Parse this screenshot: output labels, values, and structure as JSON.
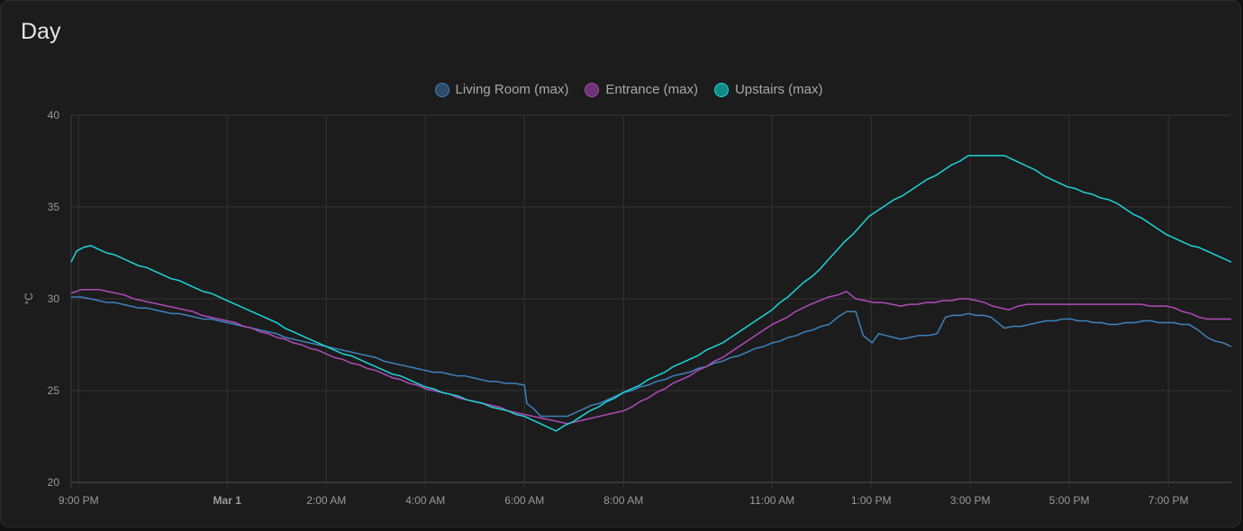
{
  "card": {
    "title": "Day"
  },
  "chart_data": {
    "type": "line",
    "title": "Day",
    "xlabel": "",
    "ylabel": "°C",
    "ylim": [
      20,
      40
    ],
    "xlim": [
      -3.15,
      20.27
    ],
    "x_unit": "hours since midnight Mar 1",
    "yticks": [
      20,
      25,
      30,
      35,
      40
    ],
    "xticks": [
      {
        "value": -3,
        "label": "9:00 PM",
        "bold": false
      },
      {
        "value": 0,
        "label": "Mar 1",
        "bold": true
      },
      {
        "value": 2,
        "label": "2:00 AM",
        "bold": false
      },
      {
        "value": 4,
        "label": "4:00 AM",
        "bold": false
      },
      {
        "value": 6,
        "label": "6:00 AM",
        "bold": false
      },
      {
        "value": 8,
        "label": "8:00 AM",
        "bold": false
      },
      {
        "value": 11,
        "label": "11:00 AM",
        "bold": false
      },
      {
        "value": 13,
        "label": "1:00 PM",
        "bold": false
      },
      {
        "value": 15,
        "label": "3:00 PM",
        "bold": false
      },
      {
        "value": 17,
        "label": "5:00 PM",
        "bold": false
      },
      {
        "value": 19,
        "label": "7:00 PM",
        "bold": false
      }
    ],
    "grid": true,
    "legend_position": "top-center",
    "series": [
      {
        "name": "Living Room (max)",
        "color": "#3f82bd",
        "fill": "#2f4a66",
        "x": [
          -3.15,
          -2.76,
          0,
          2,
          4,
          5.6,
          6,
          6.05,
          6.33,
          6.87,
          8,
          10,
          11,
          12.15,
          12.5,
          12.69,
          12.84,
          13.02,
          13.15,
          13.6,
          14.33,
          14.5,
          14.96,
          15.42,
          15.69,
          16.87,
          17.96,
          18.5,
          19.42,
          19.78,
          20.27
        ],
        "y": [
          30.1,
          30,
          28.7,
          27.4,
          26.1,
          25.4,
          25.3,
          24.3,
          23.6,
          23.6,
          24.9,
          26.6,
          27.6,
          28.6,
          29.3,
          29.3,
          28,
          27.6,
          28.1,
          27.8,
          28.1,
          29,
          29.2,
          29,
          28.4,
          28.9,
          28.6,
          28.8,
          28.6,
          27.9,
          27.4
        ]
      },
      {
        "name": "Entrance (max)",
        "color": "#b04bb8",
        "fill": "#6a3572",
        "x": [
          -3.15,
          -2.95,
          -2.58,
          0,
          2,
          4,
          6,
          6.87,
          8,
          10,
          11,
          11.78,
          12.5,
          12.69,
          13.6,
          14.96,
          15.78,
          16.15,
          17.96,
          18.96,
          19.78,
          20.27
        ],
        "y": [
          30.3,
          30.5,
          30.5,
          28.8,
          27,
          25.1,
          23.7,
          23.2,
          23.9,
          26.8,
          28.6,
          29.7,
          30.4,
          30,
          29.6,
          30,
          29.4,
          29.7,
          29.7,
          29.6,
          28.9,
          28.9
        ]
      },
      {
        "name": "Upstairs (max)",
        "color": "#1fd5d8",
        "fill": "#138a8c",
        "x": [
          -3.15,
          -3.04,
          -2.76,
          0,
          2,
          4,
          6,
          6.64,
          8,
          10,
          11,
          11.96,
          12.96,
          13.96,
          14.96,
          15.69,
          16.96,
          17.96,
          18.96,
          20.27
        ],
        "y": [
          32,
          32.6,
          32.9,
          29.9,
          27.4,
          25.2,
          23.6,
          22.8,
          24.9,
          27.6,
          29.4,
          31.6,
          34.5,
          36.2,
          37.8,
          37.8,
          36.1,
          35.2,
          33.5,
          32
        ]
      }
    ]
  }
}
